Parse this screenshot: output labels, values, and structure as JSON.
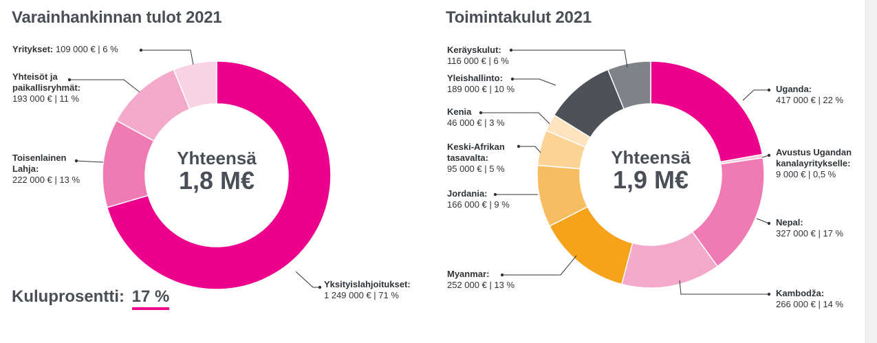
{
  "kuluprosentti": {
    "label": "Kuluprosentti:",
    "value": "17 %"
  },
  "chart_data": [
    {
      "type": "pie",
      "title": "Varainhankinnan tulot 2021",
      "center_label": "Yhteensä",
      "center_value": "1,8 M€",
      "slices": [
        {
          "name": "Yksityislahjoitukset:",
          "value": 1249000,
          "label_value": "1 249 000 € | 71 %",
          "color": "#ec008c"
        },
        {
          "name": "Toisenlainen Lahja:",
          "value": 222000,
          "label_value": "222 000 € | 13 %",
          "color": "#f07ab4"
        },
        {
          "name": "Yhteisöt ja paikallisryhmät:",
          "value": 193000,
          "label_value": "193 000 € | 11 %",
          "color": "#f4a9cb"
        },
        {
          "name": "Yritykset:",
          "value": 109000,
          "label_value": "109 000 € | 6 %",
          "color": "#f8d3e4"
        }
      ]
    },
    {
      "type": "pie",
      "title": "Toimintakulut 2021",
      "center_label": "Yhteensä",
      "center_value": "1,9 M€",
      "slices": [
        {
          "name": "Uganda:",
          "value": 417000,
          "label_value": "417 000 € | 22 %",
          "color": "#ec008c"
        },
        {
          "name": "Avustus Ugandan kanalayritykselle:",
          "value": 9000,
          "label_value": "9 000 € | 0,5 %",
          "color": "#f7c6dc"
        },
        {
          "name": "Nepal:",
          "value": 327000,
          "label_value": "327 000 € | 17 %",
          "color": "#f07ab4"
        },
        {
          "name": "Kambodža:",
          "value": 266000,
          "label_value": "266 000 € | 14 %",
          "color": "#f4a9cb"
        },
        {
          "name": "Myanmar:",
          "value": 252000,
          "label_value": "252 000 € | 13 %",
          "color": "#f7a21b"
        },
        {
          "name": "Jordania:",
          "value": 166000,
          "label_value": "166 000 € | 9 %",
          "color": "#f9bd61"
        },
        {
          "name": "Keski-Afrikan tasavalta:",
          "value": 95000,
          "label_value": "95 000 € | 5 %",
          "color": "#fbd394"
        },
        {
          "name": "Kenia",
          "value": 46000,
          "label_value": "46 000 € | 3 %",
          "color": "#fde4be"
        },
        {
          "name": "Yleishallinto:",
          "value": 189000,
          "label_value": "189 000 € | 10 %",
          "color": "#4d5259"
        },
        {
          "name": "Keräyskulut:",
          "value": 116000,
          "label_value": "116 000 € | 6 %",
          "color": "#7e8389"
        }
      ]
    }
  ]
}
